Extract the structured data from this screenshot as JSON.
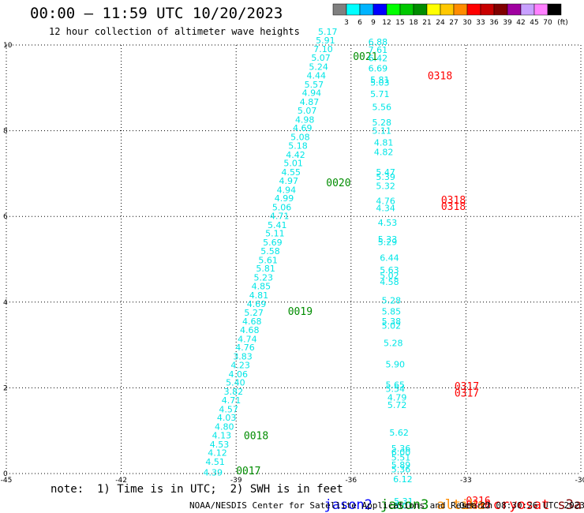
{
  "header": {
    "title": "00:00 – 11:59 UTC 10/20/2023",
    "subtitle": "12 hour collection of altimeter wave heights"
  },
  "colorbar": {
    "labels": [
      "3",
      "6",
      "9",
      "12",
      "15",
      "18",
      "21",
      "24",
      "27",
      "30",
      "33",
      "36",
      "39",
      "42",
      "45",
      "70"
    ],
    "unit": "(ft)",
    "colors": [
      "#808080",
      "#00ffff",
      "#00b4ff",
      "#0000ff",
      "#00ff00",
      "#00c800",
      "#008c00",
      "#ffff00",
      "#ffc800",
      "#ff8c00",
      "#ff0000",
      "#c80000",
      "#800000",
      "#a000a0",
      "#c8a0ff",
      "#ff80ff",
      "#000000"
    ]
  },
  "footer": {
    "note": "note:  1) Time is in UTC;  2) SWH is in feet",
    "satellites": [
      {
        "name": "jason2",
        "color": "#0000ff"
      },
      {
        "name": "jason3",
        "color": "#008c00"
      },
      {
        "name": "altika",
        "color": "#ff8c00"
      },
      {
        "name": "cryosat",
        "color": "#ff0000"
      },
      {
        "name": "s3a",
        "color": "#800000"
      }
    ],
    "credit": "NOAA/NESDIS Center for Satellite Applications and Research",
    "timestamp": "Oct 22 08:30:26 UTC 2023"
  },
  "chart_data": {
    "type": "scatter",
    "title": "00:00 – 11:59 UTC 10/20/2023",
    "subtitle": "12 hour collection of altimeter wave heights",
    "xlim": [
      -45,
      -30
    ],
    "ylim": [
      0,
      10
    ],
    "xticks": [
      -45,
      -42,
      -39,
      -36,
      -33,
      -30
    ],
    "yticks": [
      0,
      2,
      4,
      6,
      8,
      10
    ],
    "xtick_labels": [
      "-45",
      "-42",
      "-39",
      "-36",
      "-33",
      "-30"
    ],
    "ytick_labels": [
      "0",
      "2",
      "4",
      "6",
      "8",
      "10"
    ],
    "grid": true,
    "value_color": "#00e6e6",
    "series": [
      {
        "name": "jason3",
        "points": [
          {
            "x": -39.86,
            "y": -0.05,
            "v": "4.39"
          },
          {
            "x": -39.8,
            "y": 0.2,
            "v": "4.51"
          },
          {
            "x": -39.74,
            "y": 0.41,
            "v": "4.12"
          },
          {
            "x": -39.69,
            "y": 0.61,
            "v": "4.53"
          },
          {
            "x": -39.63,
            "y": 0.82,
            "v": "4.13"
          },
          {
            "x": -39.56,
            "y": 1.02,
            "v": "4.80"
          },
          {
            "x": -39.5,
            "y": 1.23,
            "v": "4.03"
          },
          {
            "x": -39.45,
            "y": 1.43,
            "v": "4.57"
          },
          {
            "x": -39.38,
            "y": 1.64,
            "v": "4.71"
          },
          {
            "x": -39.32,
            "y": 1.84,
            "v": "3.82"
          },
          {
            "x": -39.27,
            "y": 2.05,
            "v": "5.40"
          },
          {
            "x": -39.2,
            "y": 2.25,
            "v": "4.06"
          },
          {
            "x": -39.14,
            "y": 2.46,
            "v": "4.23"
          },
          {
            "x": -39.08,
            "y": 2.66,
            "v": "3.83"
          },
          {
            "x": -39.02,
            "y": 2.87,
            "v": "4.76"
          },
          {
            "x": -38.96,
            "y": 3.07,
            "v": "4.74"
          },
          {
            "x": -38.9,
            "y": 3.28,
            "v": "4.68"
          },
          {
            "x": -38.84,
            "y": 3.48,
            "v": "4.68"
          },
          {
            "x": -38.79,
            "y": 3.68,
            "v": "5.27"
          },
          {
            "x": -38.72,
            "y": 3.89,
            "v": "4.69"
          },
          {
            "x": -38.66,
            "y": 4.09,
            "v": "4.81"
          },
          {
            "x": -38.6,
            "y": 4.3,
            "v": "4.85"
          },
          {
            "x": -38.54,
            "y": 4.5,
            "v": "5.23"
          },
          {
            "x": -38.48,
            "y": 4.71,
            "v": "5.81"
          },
          {
            "x": -38.42,
            "y": 4.91,
            "v": "5.61"
          },
          {
            "x": -38.36,
            "y": 5.12,
            "v": "5.58"
          },
          {
            "x": -38.3,
            "y": 5.32,
            "v": "5.69"
          },
          {
            "x": -38.24,
            "y": 5.53,
            "v": "5.11"
          },
          {
            "x": -38.18,
            "y": 5.73,
            "v": "5.41"
          },
          {
            "x": -38.12,
            "y": 5.94,
            "v": "4.71"
          },
          {
            "x": -38.06,
            "y": 6.14,
            "v": "5.06"
          },
          {
            "x": -38.0,
            "y": 6.35,
            "v": "4.99"
          },
          {
            "x": -37.94,
            "y": 6.55,
            "v": "4.94"
          },
          {
            "x": -37.88,
            "y": 6.76,
            "v": "4.97"
          },
          {
            "x": -37.82,
            "y": 6.96,
            "v": "4.55"
          },
          {
            "x": -37.76,
            "y": 7.17,
            "v": "5.01"
          },
          {
            "x": -37.7,
            "y": 7.37,
            "v": "4.42"
          },
          {
            "x": -37.64,
            "y": 7.58,
            "v": "5.18"
          },
          {
            "x": -37.58,
            "y": 7.78,
            "v": "5.08"
          },
          {
            "x": -37.52,
            "y": 7.99,
            "v": "4.69"
          },
          {
            "x": -37.46,
            "y": 8.19,
            "v": "4.98"
          },
          {
            "x": -37.4,
            "y": 8.4,
            "v": "5.07"
          },
          {
            "x": -37.34,
            "y": 8.6,
            "v": "4.87"
          },
          {
            "x": -37.28,
            "y": 8.81,
            "v": "4.94"
          },
          {
            "x": -37.22,
            "y": 9.01,
            "v": "5.57"
          },
          {
            "x": -37.16,
            "y": 9.22,
            "v": "4.44"
          },
          {
            "x": -37.1,
            "y": 9.42,
            "v": "5.24"
          },
          {
            "x": -37.04,
            "y": 9.63,
            "v": "5.07"
          },
          {
            "x": -36.98,
            "y": 9.83,
            "v": "7.10"
          },
          {
            "x": -36.92,
            "y": 10.04,
            "v": "5.91"
          },
          {
            "x": -36.86,
            "y": 10.24,
            "v": "5.17"
          }
        ],
        "labels": [
          {
            "x": -39.0,
            "y": -0.02,
            "t": "0017"
          },
          {
            "x": -38.8,
            "y": 0.8,
            "t": "0018"
          },
          {
            "x": -37.65,
            "y": 3.7,
            "t": "0019"
          },
          {
            "x": -36.65,
            "y": 6.7,
            "t": "0020"
          },
          {
            "x": -35.95,
            "y": 9.65,
            "t": "0021"
          }
        ]
      },
      {
        "name": "cryosat",
        "points": [
          {
            "x": -35.55,
            "y": 10.0,
            "v": "6.88"
          },
          {
            "x": -35.55,
            "y": 9.82,
            "v": "7.61"
          },
          {
            "x": -35.55,
            "y": 9.62,
            "v": "6.42"
          },
          {
            "x": -35.55,
            "y": 9.38,
            "v": "6.69"
          },
          {
            "x": -35.5,
            "y": 9.12,
            "v": "5.81"
          },
          {
            "x": -35.5,
            "y": 9.05,
            "v": "5.03"
          },
          {
            "x": -35.5,
            "y": 8.78,
            "v": "5.71"
          },
          {
            "x": -35.45,
            "y": 8.48,
            "v": "5.56"
          },
          {
            "x": -35.45,
            "y": 8.12,
            "v": "5.28"
          },
          {
            "x": -35.45,
            "y": 7.93,
            "v": "5.11"
          },
          {
            "x": -35.4,
            "y": 7.65,
            "v": "4.81"
          },
          {
            "x": -35.4,
            "y": 7.43,
            "v": "4.82"
          },
          {
            "x": -35.35,
            "y": 6.96,
            "v": "5.47"
          },
          {
            "x": -35.35,
            "y": 6.85,
            "v": "5.39"
          },
          {
            "x": -35.35,
            "y": 6.64,
            "v": "5.32"
          },
          {
            "x": -35.35,
            "y": 6.29,
            "v": "4.76"
          },
          {
            "x": -35.35,
            "y": 6.12,
            "v": "4.34"
          },
          {
            "x": -35.3,
            "y": 5.78,
            "v": "4.53"
          },
          {
            "x": -35.3,
            "y": 5.4,
            "v": "5.33"
          },
          {
            "x": -35.3,
            "y": 5.33,
            "v": "5.29"
          },
          {
            "x": -35.25,
            "y": 4.96,
            "v": "6.44"
          },
          {
            "x": -35.25,
            "y": 4.68,
            "v": "5.63"
          },
          {
            "x": -35.25,
            "y": 4.55,
            "v": "5.02"
          },
          {
            "x": -35.25,
            "y": 4.4,
            "v": "4.58"
          },
          {
            "x": -35.2,
            "y": 3.97,
            "v": "5.28"
          },
          {
            "x": -35.2,
            "y": 3.71,
            "v": "5.85"
          },
          {
            "x": -35.2,
            "y": 3.48,
            "v": "5.38"
          },
          {
            "x": -35.2,
            "y": 3.38,
            "v": "5.02"
          },
          {
            "x": -35.15,
            "y": 2.97,
            "v": "5.28"
          },
          {
            "x": -35.1,
            "y": 2.48,
            "v": "5.90"
          },
          {
            "x": -35.1,
            "y": 2.0,
            "v": "5.65"
          },
          {
            "x": -35.1,
            "y": 1.91,
            "v": "5.54"
          },
          {
            "x": -35.05,
            "y": 1.7,
            "v": "4.79"
          },
          {
            "x": -35.05,
            "y": 1.53,
            "v": "5.72"
          },
          {
            "x": -35.0,
            "y": 0.88,
            "v": "5.62"
          },
          {
            "x": -34.95,
            "y": 0.52,
            "v": "5.36"
          },
          {
            "x": -34.95,
            "y": 0.42,
            "v": "6.00"
          },
          {
            "x": -34.95,
            "y": 0.3,
            "v": "5.51"
          },
          {
            "x": -34.95,
            "y": 0.13,
            "v": "5.89"
          },
          {
            "x": -34.95,
            "y": 0.03,
            "v": "5.36"
          },
          {
            "x": -34.9,
            "y": -0.2,
            "v": "6.12"
          },
          {
            "x": -34.88,
            "y": -0.72,
            "v": "5.31"
          },
          {
            "x": -34.88,
            "y": -0.82,
            "v": "5.01"
          }
        ],
        "labels": [
          {
            "x": -34.0,
            "y": 9.2,
            "t": "0318"
          },
          {
            "x": -33.65,
            "y": 6.3,
            "t": "0318"
          },
          {
            "x": -33.65,
            "y": 6.15,
            "t": "0318"
          },
          {
            "x": -33.3,
            "y": 1.95,
            "t": "0317"
          },
          {
            "x": -33.3,
            "y": 1.8,
            "t": "0317"
          },
          {
            "x": -33.0,
            "y": -0.72,
            "t": "0316"
          },
          {
            "x": -33.0,
            "y": -0.82,
            "t": "0316"
          }
        ]
      }
    ]
  }
}
